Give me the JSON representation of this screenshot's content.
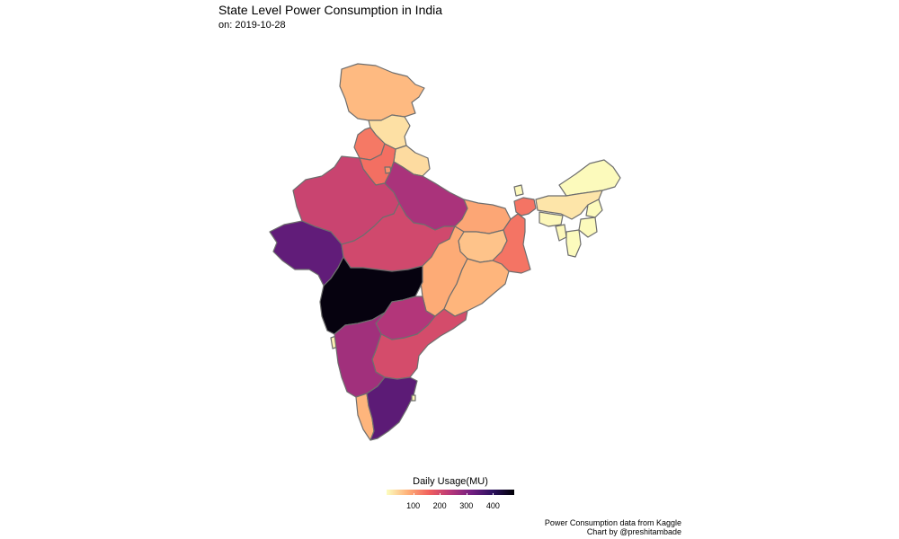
{
  "title": "State Level Power Consumption in India",
  "subtitle": "on: 2019-10-28",
  "legend": {
    "title": "Daily Usage(MU)",
    "min": 0,
    "max": 480,
    "ticks": [
      100,
      200,
      300,
      400
    ],
    "palette": [
      "#fcfdbf",
      "#feb078",
      "#f1605d",
      "#b73779",
      "#721f81",
      "#2c115f",
      "#000004"
    ]
  },
  "caption": {
    "line1": "Power Consumption data from Kaggle",
    "line2": "Chart by @preshitambade"
  },
  "chart_data": {
    "type": "choropleth",
    "date": "2019-10-28",
    "value_label": "Daily Usage(MU)",
    "states": [
      {
        "name": "Jammu and Kashmir",
        "value": 70
      },
      {
        "name": "Himachal Pradesh",
        "value": 30
      },
      {
        "name": "Punjab",
        "value": 135
      },
      {
        "name": "Haryana",
        "value": 145
      },
      {
        "name": "Uttarakhand",
        "value": 35
      },
      {
        "name": "Delhi",
        "value": 110
      },
      {
        "name": "Rajasthan",
        "value": 215
      },
      {
        "name": "Uttar Pradesh",
        "value": 255
      },
      {
        "name": "Gujarat",
        "value": 340
      },
      {
        "name": "Madhya Pradesh",
        "value": 205
      },
      {
        "name": "Bihar",
        "value": 90
      },
      {
        "name": "Jharkhand",
        "value": 60
      },
      {
        "name": "West Bengal",
        "value": 140
      },
      {
        "name": "Sikkim",
        "value": 5
      },
      {
        "name": "Chhattisgarh",
        "value": 85
      },
      {
        "name": "Odisha",
        "value": 75
      },
      {
        "name": "Maharashtra",
        "value": 470
      },
      {
        "name": "Telangana",
        "value": 245
      },
      {
        "name": "Andhra Pradesh",
        "value": 200
      },
      {
        "name": "Goa",
        "value": 15
      },
      {
        "name": "Karnataka",
        "value": 265
      },
      {
        "name": "Kerala",
        "value": 75
      },
      {
        "name": "Tamil Nadu",
        "value": 345
      },
      {
        "name": "Puducherry",
        "value": 10
      },
      {
        "name": "Arunachal Pradesh",
        "value": 3
      },
      {
        "name": "Assam",
        "value": 25
      },
      {
        "name": "Meghalaya",
        "value": 6
      },
      {
        "name": "Nagaland",
        "value": 3
      },
      {
        "name": "Manipur",
        "value": 3
      },
      {
        "name": "Mizoram",
        "value": 2
      },
      {
        "name": "Tripura",
        "value": 5
      }
    ]
  }
}
